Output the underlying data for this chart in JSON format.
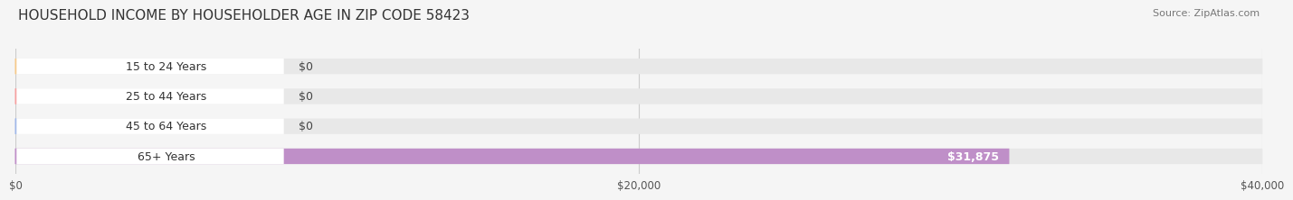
{
  "title": "HOUSEHOLD INCOME BY HOUSEHOLDER AGE IN ZIP CODE 58423",
  "source": "Source: ZipAtlas.com",
  "categories": [
    "15 to 24 Years",
    "25 to 44 Years",
    "45 to 64 Years",
    "65+ Years"
  ],
  "values": [
    0,
    0,
    0,
    31875
  ],
  "bar_colors": [
    "#f5c98a",
    "#f5a0a0",
    "#a0b8e8",
    "#bf8fc8"
  ],
  "value_labels": [
    "$0",
    "$0",
    "$0",
    "$31,875"
  ],
  "xlim": [
    0,
    40000
  ],
  "xticks": [
    0,
    20000,
    40000
  ],
  "xtick_labels": [
    "$0",
    "$20,000",
    "$40,000"
  ],
  "background_color": "#f5f5f5",
  "bar_background_color": "#e8e8e8",
  "title_fontsize": 11,
  "source_fontsize": 8,
  "bar_height": 0.52,
  "figsize": [
    14.06,
    2.33
  ]
}
